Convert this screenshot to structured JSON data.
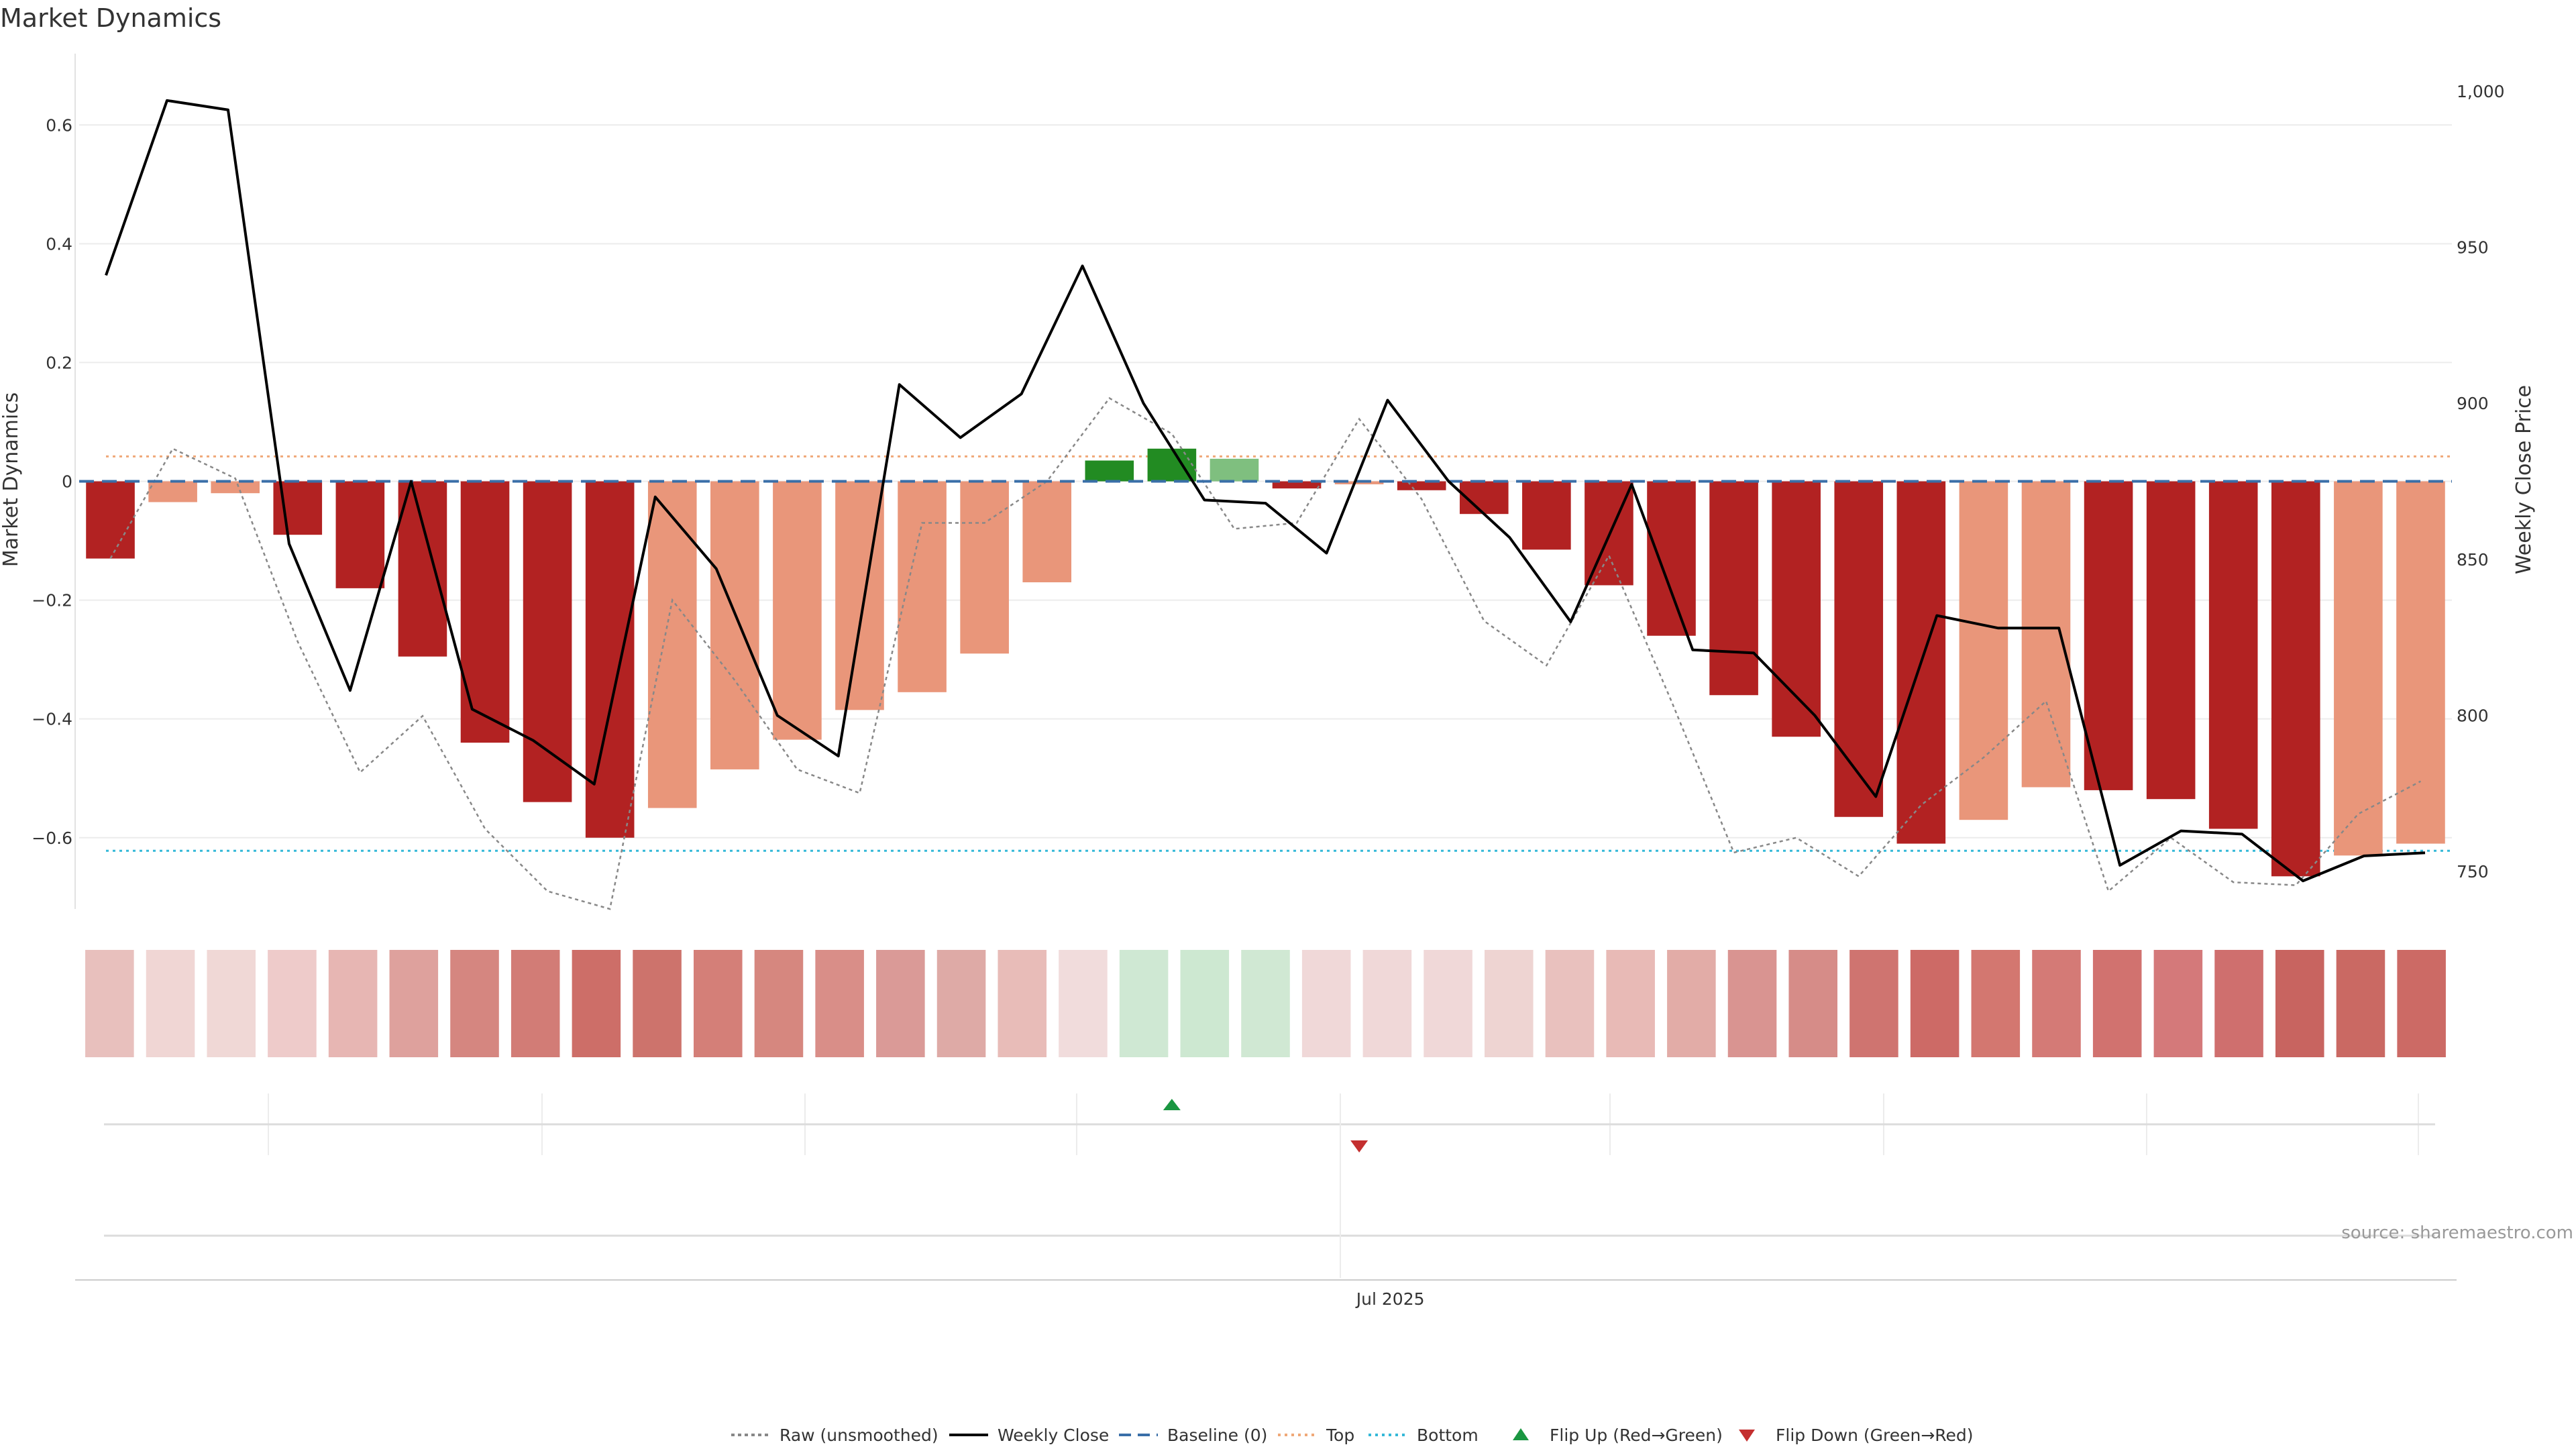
{
  "chart_data": {
    "type": "bar",
    "title": "Market Dynamics",
    "ylabel_left": "Market Dynamics",
    "ylabel_right": "Weekly Close Price",
    "ylim_left": [
      -0.72,
      0.72
    ],
    "ylim_right": [
      738,
      1012
    ],
    "left_ticks": [
      0.6,
      0.4,
      0.2,
      0,
      -0.2,
      -0.4,
      -0.6
    ],
    "left_tick_labels": [
      "0.6",
      "0.4",
      "0.2",
      "0",
      "−0.2",
      "−0.4",
      "−0.6"
    ],
    "right_ticks": [
      1000,
      950,
      900,
      850,
      800,
      750
    ],
    "right_tick_labels": [
      "1,000",
      "950",
      "900",
      "850",
      "800",
      "750"
    ],
    "x_tick_label": "Jul 2025",
    "x_tick_index": 20.5,
    "top_threshold": 0.042,
    "bottom_threshold": -0.622,
    "baseline": 0,
    "values": [
      -0.13,
      -0.035,
      -0.02,
      -0.09,
      -0.18,
      -0.295,
      -0.44,
      -0.54,
      -0.6,
      -0.55,
      -0.485,
      -0.435,
      -0.385,
      -0.355,
      -0.29,
      -0.17,
      0.035,
      0.055,
      0.038,
      -0.012,
      -0.005,
      -0.015,
      -0.055,
      -0.115,
      -0.175,
      -0.26,
      -0.36,
      -0.43,
      -0.565,
      -0.61,
      -0.57,
      -0.515,
      -0.52,
      -0.535,
      -0.585,
      -0.665,
      -0.63,
      -0.61
    ],
    "bar_colors": [
      "#b22222",
      "#e9967a",
      "#e9967a",
      "#b22222",
      "#b22222",
      "#b22222",
      "#b22222",
      "#b22222",
      "#b22222",
      "#e9967a",
      "#e9967a",
      "#e9967a",
      "#e9967a",
      "#e9967a",
      "#e9967a",
      "#e9967a",
      "#228b22",
      "#228b22",
      "#7fbf7f",
      "#b22222",
      "#e9967a",
      "#b22222",
      "#b22222",
      "#b22222",
      "#b22222",
      "#b22222",
      "#b22222",
      "#b22222",
      "#b22222",
      "#b22222",
      "#e9967a",
      "#e9967a",
      "#b22222",
      "#b22222",
      "#b22222",
      "#b22222",
      "#e9967a",
      "#e9967a"
    ],
    "raw_values": [
      -0.13,
      0.055,
      0.005,
      -0.27,
      -0.49,
      -0.395,
      -0.585,
      -0.69,
      -0.73,
      -0.2,
      -0.335,
      -0.485,
      -0.525,
      -0.07,
      -0.07,
      0.0,
      0.14,
      0.08,
      -0.08,
      -0.07,
      0.105,
      -0.03,
      -0.235,
      -0.31,
      -0.125,
      -0.37,
      -0.625,
      -0.6,
      -0.665,
      -0.545,
      -0.465,
      -0.37,
      -0.69,
      -0.6,
      -0.675,
      -0.68,
      -0.56,
      -0.505
    ],
    "weekly_close": [
      941,
      997,
      994,
      855,
      808,
      875,
      802,
      792,
      778,
      870,
      847,
      800,
      787,
      906,
      889,
      903,
      944,
      900,
      869,
      868,
      852,
      901,
      875,
      857,
      830,
      874,
      821,
      820,
      800,
      774,
      832,
      828,
      828,
      752,
      763,
      762,
      747,
      755,
      756
    ],
    "strip_colors": [
      "#e8c0bd",
      "#f0d6d4",
      "#f0d8d6",
      "#eecbca",
      "#e7b6b3",
      "#dea19d",
      "#d58680",
      "#d27c76",
      "#cd6e68",
      "#cd736c",
      "#d47f78",
      "#d6877f",
      "#d98e88",
      "#da9a97",
      "#deaaa6",
      "#e8bcb8",
      "#f1dcdc",
      "#cfe8d3",
      "#cde8d1",
      "#d0e8d3",
      "#f0d8d8",
      "#f0d8d8",
      "#f0d8d8",
      "#eed4d2",
      "#e9c1be",
      "#e8bab6",
      "#e2aca7",
      "#d99491",
      "#d68c88",
      "#cf7470",
      "#cd6a66",
      "#d37770",
      "#d47a76",
      "#d1726f",
      "#d4797a",
      "#cf6f6e",
      "#c86460",
      "#ca6963",
      "#cc6a65"
    ],
    "flip_up_index": 17,
    "flip_down_index": 20,
    "source": "source: sharemaestro.com",
    "legend": [
      "Raw (unsmoothed)",
      "Weekly Close",
      "Baseline (0)",
      "Top",
      "Bottom",
      "Flip Up (Red→Green)",
      "Flip Down (Green→Red)"
    ],
    "colors": {
      "raw": "#888888",
      "close": "#000000",
      "baseline": "#3a6fa8",
      "top": "#f0a878",
      "bottom": "#34b8d8",
      "flip_up": "#1a9641",
      "flip_down": "#c42f2f"
    }
  }
}
